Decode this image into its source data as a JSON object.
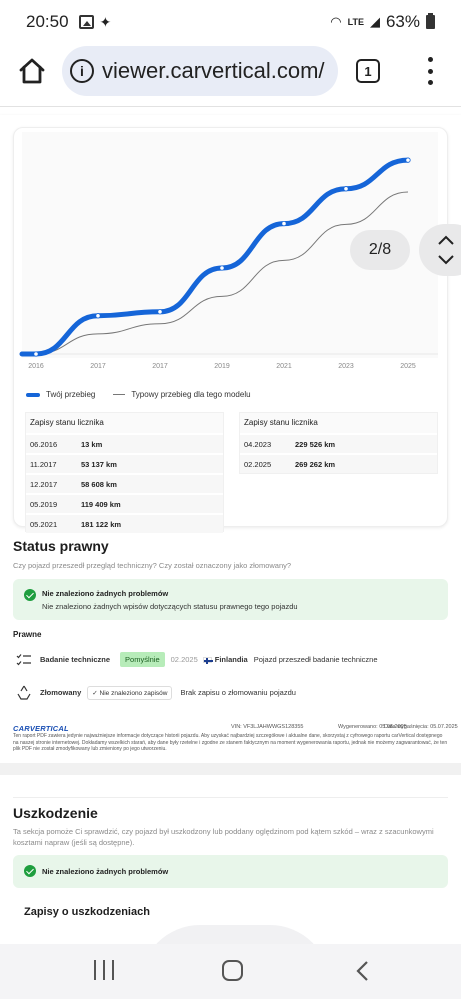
{
  "status_bar": {
    "time": "20:50",
    "battery": "63%",
    "network": "LTE"
  },
  "browser": {
    "url": "viewer.carvertical.com/",
    "tab_count": "1"
  },
  "page_indicator": "2/8",
  "mileage_chart": {
    "legend_yours": "Twój przebieg",
    "legend_typical": "Typowy przebieg dla tego modelu",
    "colors": {
      "yours": "#1565d8",
      "typical": "#777777"
    }
  },
  "chart_data": {
    "type": "line",
    "categories": [
      "2016",
      "2017",
      "2017",
      "2019",
      "2021",
      "2023",
      "2025"
    ],
    "series": [
      {
        "name": "Twój przebieg",
        "values": [
          13,
          53137,
          58608,
          119409,
          181122,
          229526,
          269262
        ]
      },
      {
        "name": "Typowy przebieg dla tego modelu",
        "values": [
          13,
          28000,
          42000,
          80000,
          130000,
          180000,
          225000
        ]
      }
    ],
    "ylim": [
      0,
      300000
    ],
    "grid": false
  },
  "odometer_left": {
    "title": "Zapisy stanu licznika",
    "rows": [
      {
        "date": "06.2016",
        "value": "13 km"
      },
      {
        "date": "11.2017",
        "value": "53 137 km"
      },
      {
        "date": "12.2017",
        "value": "58 608 km"
      },
      {
        "date": "05.2019",
        "value": "119 409 km"
      },
      {
        "date": "05.2021",
        "value": "181 122 km"
      }
    ]
  },
  "odometer_right": {
    "title": "Zapisy stanu licznika",
    "rows": [
      {
        "date": "04.2023",
        "value": "229 526 km"
      },
      {
        "date": "02.2025",
        "value": "269 262 km"
      }
    ]
  },
  "legal": {
    "title": "Status prawny",
    "subtitle": "Czy pojazd przeszedł przegląd techniczny? Czy został oznaczony jako złomowany?",
    "ok_title": "Nie znaleziono żadnych problemów",
    "ok_sub": "Nie znaleziono żadnych wpisów dotyczących statusu prawnego tego pojazdu",
    "section": "Prawne",
    "inspection": {
      "label": "Badanie techniczne",
      "status": "Pomyślnie",
      "date": "02.2025",
      "country": "Finlandia",
      "note": "Pojazd przeszedł badanie techniczne"
    },
    "scrapped": {
      "label": "Złomowany",
      "status": "Nie znaleziono zapisów",
      "note": "Brak zapisu o złomowaniu pojazdu"
    }
  },
  "footer": {
    "logo": "CARVERTICAL",
    "vin": "VIN: VF3LJAHWWGS128355",
    "generated": "Wygenerowano: 05.06.2025",
    "expires": "Data wygaśnięcia: 05.07.2025",
    "disclaimer": "Ten raport PDF zawiera jedynie najważniejsze informacje dotyczące historii pojazdu. Aby uzyskać najbardziej szczegółowe i aktualne dane, skorzystaj z cyfrowego raportu carVertical dostępnego na naszej stronie internetowej. Dokładamy wszelkich starań, aby dane były rzetelne i zgodne ze stanem faktycznym na moment wygenerowania raportu, jednak nie możemy zagwarantować, że ten plik PDF nie został zmodyfikowany lub zmieniony po jego utworzeniu."
  },
  "damage": {
    "title": "Uszkodzenie",
    "subtitle": "Ta sekcja pomoże Ci sprawdzić, czy pojazd był uszkodzony lub poddany oględzinom pod kątem szkód – wraz z szacunkowymi kosztami napraw (jeśli są dostępne).",
    "ok_title": "Nie znaleziono żadnych problemów",
    "records_title": "Zapisy o uszkodzeniach"
  }
}
